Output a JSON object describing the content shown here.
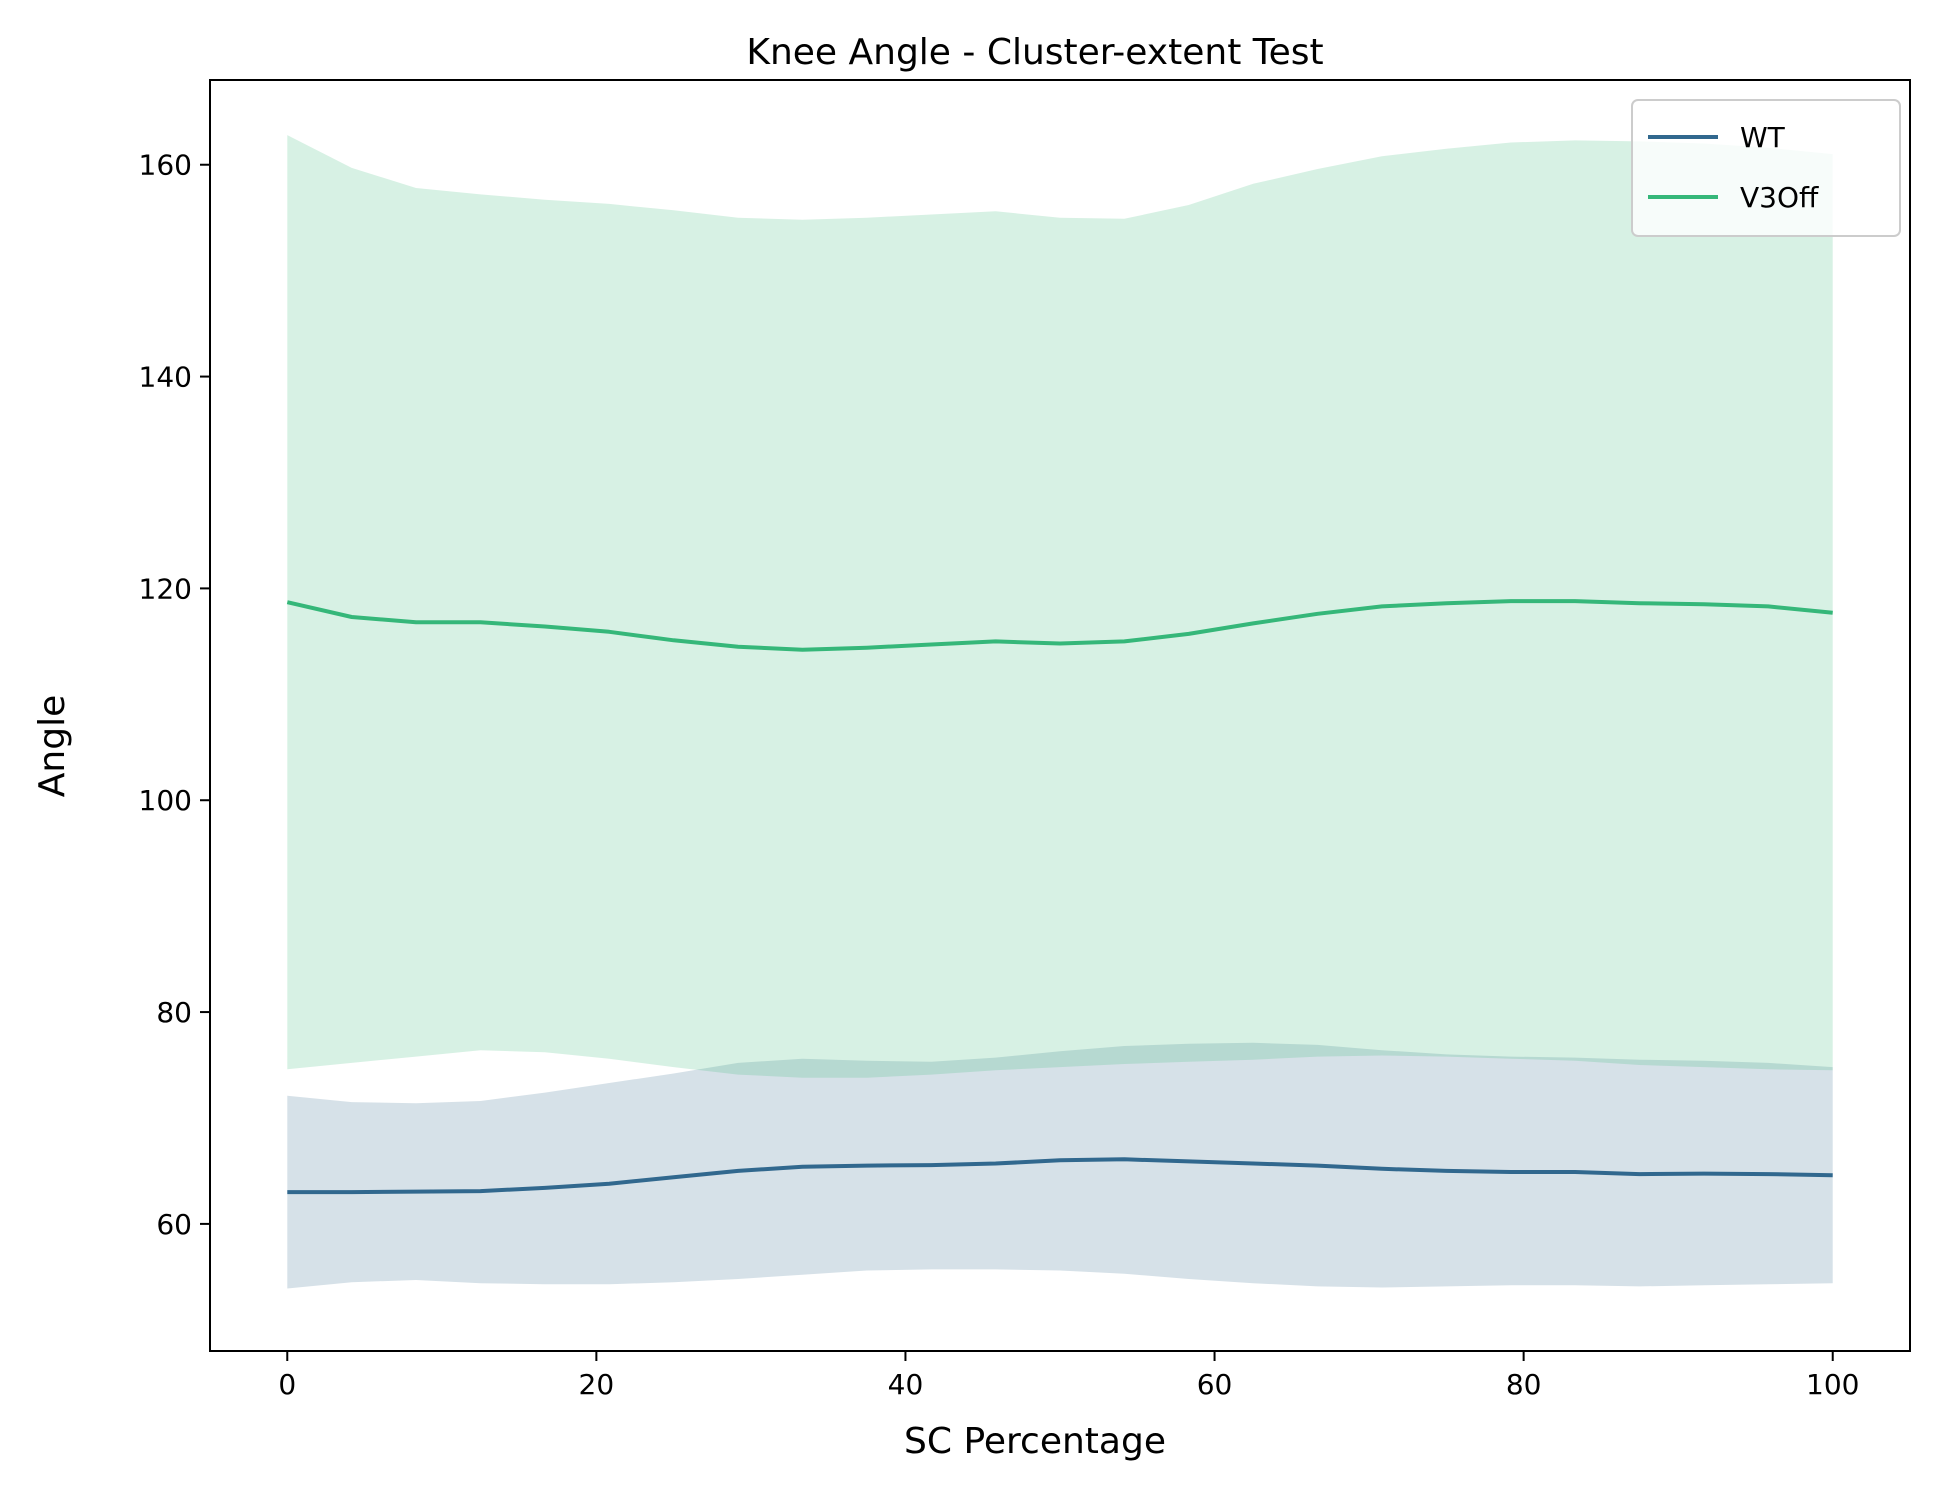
{
  "chart_data": {
    "type": "line",
    "title": "Knee Angle - Cluster-extent Test",
    "xlabel": "SC Percentage",
    "ylabel": "Angle",
    "xlim": [
      -5,
      105
    ],
    "ylim": [
      48,
      168
    ],
    "xticks": [
      0,
      20,
      40,
      60,
      80,
      100
    ],
    "yticks": [
      60,
      80,
      100,
      120,
      140,
      160
    ],
    "grid": false,
    "legend_position": "top-right",
    "x": [
      0,
      4.17,
      8.33,
      12.5,
      16.67,
      20.83,
      25,
      29.17,
      33.33,
      37.5,
      41.67,
      45.83,
      50,
      54.17,
      58.33,
      62.5,
      66.67,
      70.83,
      75,
      79.17,
      83.33,
      87.5,
      91.67,
      95.83,
      100
    ],
    "series": [
      {
        "name": "WT",
        "color": "#31688e",
        "band_color": "#31688e",
        "values": [
          63.0,
          63.0,
          63.05,
          63.1,
          63.4,
          63.8,
          64.4,
          65.0,
          65.4,
          65.5,
          65.55,
          65.7,
          66.0,
          66.1,
          65.9,
          65.7,
          65.5,
          65.2,
          65.0,
          64.9,
          64.9,
          64.7,
          64.75,
          64.7,
          64.6
        ],
        "upper": [
          72.1,
          71.5,
          71.4,
          71.6,
          72.4,
          73.3,
          74.2,
          75.2,
          75.6,
          75.4,
          75.3,
          75.7,
          76.3,
          76.8,
          77.0,
          77.1,
          76.9,
          76.4,
          76.0,
          75.8,
          75.7,
          75.5,
          75.4,
          75.2,
          74.8
        ],
        "lower": [
          53.9,
          54.5,
          54.7,
          54.4,
          54.3,
          54.3,
          54.5,
          54.8,
          55.2,
          55.6,
          55.7,
          55.7,
          55.6,
          55.3,
          54.8,
          54.4,
          54.1,
          54.0,
          54.1,
          54.2,
          54.2,
          54.1,
          54.2,
          54.3,
          54.4
        ]
      },
      {
        "name": "V3Off",
        "color": "#35b779",
        "band_color": "#35b779",
        "values": [
          118.7,
          117.3,
          116.8,
          116.8,
          116.4,
          115.9,
          115.1,
          114.5,
          114.2,
          114.4,
          114.7,
          115.0,
          114.8,
          115.0,
          115.7,
          116.7,
          117.6,
          118.3,
          118.6,
          118.8,
          118.8,
          118.6,
          118.5,
          118.3,
          117.7
        ],
        "upper": [
          162.8,
          159.7,
          157.8,
          157.2,
          156.7,
          156.3,
          155.7,
          155.0,
          154.8,
          155.0,
          155.3,
          155.6,
          155.0,
          154.9,
          156.2,
          158.2,
          159.6,
          160.8,
          161.5,
          162.1,
          162.3,
          162.2,
          162.0,
          161.6,
          161.0
        ],
        "lower": [
          74.6,
          75.2,
          75.8,
          76.4,
          76.2,
          75.6,
          74.8,
          74.1,
          73.8,
          73.8,
          74.1,
          74.5,
          74.8,
          75.1,
          75.3,
          75.5,
          75.8,
          75.9,
          75.8,
          75.6,
          75.4,
          75.0,
          74.8,
          74.6,
          74.5
        ]
      }
    ]
  }
}
